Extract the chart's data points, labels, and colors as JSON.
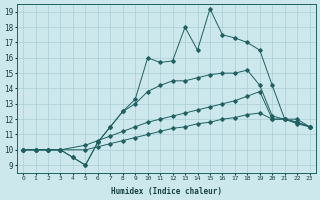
{
  "xlabel": "Humidex (Indice chaleur)",
  "xlim": [
    -0.5,
    23.5
  ],
  "ylim": [
    8.5,
    19.5
  ],
  "yticks": [
    9,
    10,
    11,
    12,
    13,
    14,
    15,
    16,
    17,
    18,
    19
  ],
  "xticks": [
    0,
    1,
    2,
    3,
    4,
    5,
    6,
    7,
    8,
    9,
    10,
    11,
    12,
    13,
    14,
    15,
    16,
    17,
    18,
    19,
    20,
    21,
    22,
    23
  ],
  "background_color": "#cce8ec",
  "grid_color": "#aacdd4",
  "line_color": "#206060",
  "lines": [
    {
      "x": [
        0,
        1,
        2,
        3,
        5,
        6,
        7,
        8,
        9,
        10,
        11,
        12,
        13,
        14,
        15,
        16,
        17,
        18,
        19,
        20,
        21,
        22,
        23
      ],
      "y": [
        10.0,
        10.0,
        10.0,
        10.0,
        10.0,
        10.2,
        10.4,
        10.6,
        10.8,
        11.0,
        11.2,
        11.4,
        11.5,
        11.7,
        11.8,
        12.0,
        12.1,
        12.3,
        12.4,
        12.0,
        12.0,
        11.7,
        11.5
      ]
    },
    {
      "x": [
        0,
        1,
        2,
        3,
        5,
        6,
        7,
        8,
        9,
        10,
        11,
        12,
        13,
        14,
        15,
        16,
        17,
        18,
        19,
        20,
        21,
        22,
        23
      ],
      "y": [
        10.0,
        10.0,
        10.0,
        10.0,
        10.3,
        10.6,
        10.9,
        11.2,
        11.5,
        11.8,
        12.0,
        12.2,
        12.4,
        12.6,
        12.8,
        13.0,
        13.2,
        13.5,
        13.8,
        12.0,
        12.0,
        11.8,
        11.5
      ]
    },
    {
      "x": [
        0,
        1,
        2,
        3,
        4,
        5,
        6,
        7,
        8,
        9,
        10,
        11,
        12,
        13,
        14,
        15,
        16,
        17,
        18,
        19,
        20,
        21,
        22,
        23
      ],
      "y": [
        10.0,
        10.0,
        10.0,
        10.0,
        9.5,
        9.0,
        10.5,
        11.5,
        12.5,
        13.0,
        13.8,
        14.2,
        14.5,
        14.5,
        14.7,
        14.9,
        15.0,
        15.0,
        15.2,
        14.2,
        12.2,
        12.0,
        11.8,
        11.5
      ]
    },
    {
      "x": [
        0,
        1,
        2,
        3,
        4,
        5,
        6,
        7,
        8,
        9,
        10,
        11,
        12,
        13,
        14,
        15,
        16,
        17,
        18,
        19,
        20,
        21,
        22,
        23
      ],
      "y": [
        10.0,
        10.0,
        10.0,
        10.0,
        9.5,
        9.0,
        10.5,
        11.5,
        12.5,
        13.3,
        16.0,
        15.7,
        15.8,
        18.0,
        16.5,
        19.2,
        17.5,
        17.3,
        17.0,
        16.5,
        14.2,
        12.0,
        12.0,
        11.5
      ]
    }
  ]
}
